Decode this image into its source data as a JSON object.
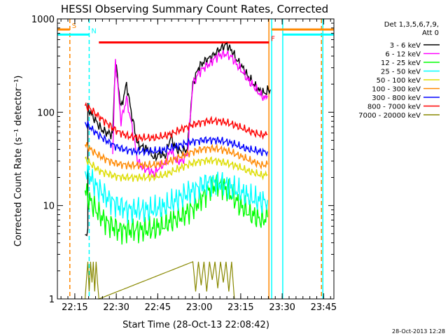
{
  "chart_data": {
    "type": "line",
    "title": "HESSI Observing Summary Count Rates, Corrected",
    "xlabel": "Start Time (28-Oct-13 22:08:42)",
    "ylabel": "Corrected Count Rate (s⁻¹ detector⁻¹)",
    "x_unit": "minutes after 22:08:42",
    "xlim": [
      0,
      100
    ],
    "ylim": [
      1,
      1000
    ],
    "y_scale": "log",
    "x_ticks": [
      {
        "value": 6.3,
        "label": "22:15"
      },
      {
        "value": 21.3,
        "label": "22:30"
      },
      {
        "value": 36.3,
        "label": "22:45"
      },
      {
        "value": 51.3,
        "label": "23:00"
      },
      {
        "value": 66.3,
        "label": "23:15"
      },
      {
        "value": 81.3,
        "label": "23:30"
      },
      {
        "value": 96.3,
        "label": "23:45"
      }
    ],
    "y_ticks": [
      {
        "value": 1,
        "label": "1"
      },
      {
        "value": 10,
        "label": "10"
      },
      {
        "value": 100,
        "label": "100"
      },
      {
        "value": 1000,
        "label": "1000"
      }
    ],
    "legend": {
      "position": "top-right",
      "header": [
        "Det 1,3,5,6,7,9,",
        "Att 0"
      ]
    },
    "series": [
      {
        "name": "3 - 6 keV",
        "color": "#000000",
        "x": [
          10,
          11,
          11,
          14,
          16,
          18,
          20,
          21,
          23,
          25,
          27,
          29,
          31,
          33,
          35,
          37,
          39,
          41,
          43,
          45,
          47,
          49,
          51,
          53,
          55,
          57,
          59,
          61,
          63,
          65,
          67,
          69,
          71,
          73,
          75,
          76,
          77
        ],
        "y": [
          5,
          5,
          110,
          80,
          65,
          60,
          58,
          360,
          110,
          200,
          90,
          45,
          42,
          40,
          32,
          36,
          34,
          55,
          40,
          38,
          40,
          200,
          300,
          350,
          380,
          420,
          480,
          530,
          460,
          360,
          300,
          240,
          200,
          170,
          160,
          170,
          175
        ]
      },
      {
        "name": "6 - 12 keV",
        "color": "#ff00ff",
        "x": [
          20,
          21,
          23,
          25,
          27,
          29,
          31,
          33,
          35,
          37,
          39,
          41,
          43,
          45,
          47,
          49,
          51,
          53,
          55,
          57,
          59,
          61,
          63,
          65,
          67,
          69,
          71,
          73,
          75,
          76
        ],
        "y": [
          35,
          360,
          80,
          140,
          70,
          30,
          25,
          24,
          22,
          26,
          28,
          40,
          30,
          30,
          35,
          200,
          260,
          300,
          330,
          380,
          410,
          420,
          390,
          320,
          270,
          220,
          190,
          160,
          140,
          150
        ]
      },
      {
        "name": "12 - 25 keV",
        "color": "#00ff00",
        "x": [
          10,
          12,
          14,
          16,
          18,
          20,
          22,
          24,
          26,
          28,
          30,
          32,
          34,
          36,
          38,
          40,
          42,
          44,
          46,
          48,
          50,
          52,
          54,
          56,
          58,
          60,
          62,
          64,
          66,
          68,
          70,
          72,
          74,
          76
        ],
        "y": [
          14,
          11,
          9,
          7.5,
          6.5,
          6,
          5.5,
          5.5,
          5.5,
          5.5,
          5.5,
          5.5,
          5.5,
          5.8,
          6,
          6.5,
          7,
          7.5,
          8,
          9,
          10,
          12,
          14,
          16,
          17,
          16,
          14,
          12,
          10,
          9,
          8,
          7.5,
          7,
          7.5
        ]
      },
      {
        "name": "25 - 50 keV",
        "color": "#00ffff",
        "x": [
          10,
          12,
          14,
          16,
          18,
          20,
          22,
          24,
          26,
          28,
          30,
          32,
          34,
          36,
          38,
          40,
          42,
          44,
          46,
          48,
          50,
          52,
          54,
          56,
          58,
          60,
          62,
          64,
          66,
          68,
          70,
          72,
          74,
          76
        ],
        "y": [
          24,
          20,
          16,
          14,
          12,
          11,
          10,
          9.5,
          9,
          9,
          9,
          9,
          9,
          9.2,
          9.5,
          10,
          11,
          12,
          13,
          14,
          15,
          16.5,
          17.5,
          18,
          17.5,
          17,
          16,
          15,
          14,
          13,
          12,
          11.5,
          11,
          11.5
        ]
      },
      {
        "name": "50 - 100 keV",
        "color": "#dddd00",
        "x": [
          10,
          12,
          14,
          16,
          18,
          20,
          22,
          24,
          26,
          28,
          30,
          32,
          34,
          36,
          38,
          40,
          42,
          44,
          46,
          48,
          50,
          52,
          54,
          56,
          58,
          60,
          62,
          64,
          66,
          68,
          70,
          72,
          74,
          76
        ],
        "y": [
          32,
          28,
          25,
          23,
          22,
          21,
          20.5,
          20,
          20,
          20,
          20,
          20,
          20,
          20.5,
          21,
          22,
          23.5,
          25,
          26.5,
          28,
          29,
          30,
          30.5,
          30.5,
          30,
          29,
          28,
          27,
          25.5,
          24,
          23,
          22,
          21,
          21.5
        ]
      },
      {
        "name": "100 - 300 keV",
        "color": "#ff8800",
        "x": [
          10,
          12,
          14,
          16,
          18,
          20,
          22,
          24,
          26,
          28,
          30,
          32,
          34,
          36,
          38,
          40,
          42,
          44,
          46,
          48,
          50,
          52,
          54,
          56,
          58,
          60,
          62,
          64,
          66,
          68,
          70,
          72,
          74,
          76
        ],
        "y": [
          45,
          40,
          36,
          33,
          31,
          29,
          28,
          27.5,
          27,
          27,
          27,
          27,
          27,
          27.5,
          28,
          29.5,
          31,
          33,
          35,
          37,
          38.5,
          40,
          41,
          41,
          40.5,
          39.5,
          38,
          36,
          34,
          32,
          30,
          28.5,
          27,
          27.5
        ]
      },
      {
        "name": "300 - 800 keV",
        "color": "#0000ff",
        "x": [
          10,
          12,
          14,
          16,
          18,
          20,
          22,
          24,
          26,
          28,
          30,
          32,
          34,
          36,
          38,
          40,
          42,
          44,
          46,
          48,
          50,
          52,
          54,
          56,
          58,
          60,
          62,
          64,
          66,
          68,
          70,
          72,
          74,
          76
        ],
        "y": [
          78,
          68,
          60,
          54,
          49,
          45,
          42,
          40,
          39,
          38,
          38,
          38,
          38,
          38.5,
          39,
          40.5,
          42,
          44,
          46,
          48,
          49,
          50,
          50.5,
          50.5,
          50,
          49,
          47.5,
          45.5,
          43,
          41,
          39.5,
          38.5,
          37.5,
          38
        ]
      },
      {
        "name": "800 - 7000 keV",
        "color": "#ff0000",
        "x": [
          10,
          12,
          14,
          16,
          18,
          20,
          22,
          24,
          26,
          28,
          30,
          32,
          34,
          36,
          38,
          40,
          42,
          44,
          46,
          48,
          50,
          52,
          54,
          56,
          58,
          60,
          62,
          64,
          66,
          68,
          70,
          72,
          74,
          76
        ],
        "y": [
          118,
          108,
          95,
          85,
          76,
          68,
          62,
          58,
          55,
          54,
          53,
          53,
          53,
          53.5,
          55,
          57,
          60,
          64,
          68,
          72,
          75,
          78,
          80,
          81,
          80.5,
          79,
          76,
          73,
          69,
          65,
          62,
          59,
          57,
          58
        ]
      },
      {
        "name": "7000 - 20000 keV",
        "color": "#888800",
        "x": [
          10,
          11,
          11.5,
          12,
          12.5,
          13,
          13.5,
          14,
          14.5,
          15,
          49,
          50,
          51,
          52,
          53,
          54,
          55,
          56,
          57,
          58,
          59,
          60,
          61,
          62,
          63,
          64
        ],
        "y": [
          1,
          2.5,
          1.2,
          2.5,
          1.5,
          2.5,
          1.2,
          2.5,
          1.5,
          1,
          2.5,
          1.2,
          2.5,
          1.4,
          2.5,
          1.2,
          2.5,
          1.6,
          2.5,
          1.3,
          2.5,
          1.5,
          2.5,
          1.2,
          2.5,
          1
        ]
      }
    ],
    "flags": [
      {
        "label": "S",
        "color": "#ff8800",
        "start": 0,
        "end": 4.5,
        "y_level": 770
      },
      {
        "label": "N",
        "color": "#00ffff",
        "start": 0,
        "end": 11.5,
        "y_level": 680
      },
      {
        "label": "F",
        "color": "#ff0000",
        "start": 15,
        "end": 76.5,
        "y_level": 560
      },
      {
        "label": "",
        "color": "#ff8800",
        "start": 77.5,
        "end": 100,
        "y_level": 770
      },
      {
        "label": "",
        "color": "#00ffff",
        "start": 81.5,
        "end": 100,
        "y_level": 680
      }
    ],
    "vertical_markers": [
      {
        "x": 4.5,
        "color": "#ff8800",
        "style": "dashed"
      },
      {
        "x": 11.5,
        "color": "#00ffff",
        "style": "dashed"
      },
      {
        "x": 76.5,
        "color": "#ff8800",
        "style": "solid"
      },
      {
        "x": 77.5,
        "color": "#00ffff",
        "style": "solid"
      },
      {
        "x": 81.5,
        "color": "#00ffff",
        "style": "solid"
      },
      {
        "x": 95.5,
        "color": "#ff8800",
        "style": "dashed"
      },
      {
        "x": 96,
        "color": "#00ffff",
        "style": "solid"
      }
    ],
    "footer": "28-Oct-2013 12:28"
  }
}
